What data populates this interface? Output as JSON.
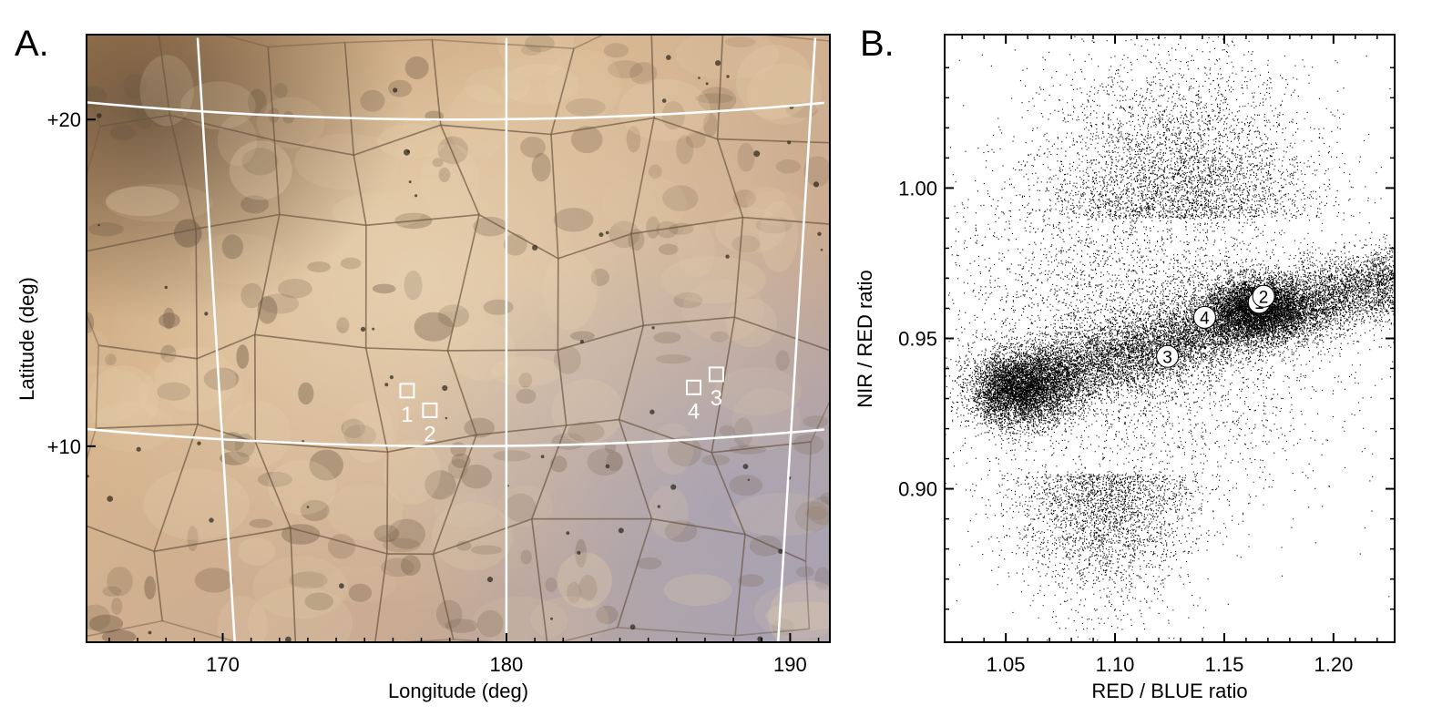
{
  "figure": {
    "panel_a_label": "A.",
    "panel_b_label": "B."
  },
  "chart_data": [
    {
      "type": "map",
      "panel": "A.",
      "xlabel": "Longitude (deg)",
      "ylabel": "Latitude (deg)",
      "xlim": [
        165.2,
        191.4
      ],
      "ylim": [
        4.0,
        22.6
      ],
      "x_ticks": [
        "170",
        "180",
        "190"
      ],
      "x_tick_values": [
        170,
        180,
        190
      ],
      "y_ticks": [
        "+20",
        "+10"
      ],
      "y_tick_values": [
        20,
        10
      ],
      "grid": true,
      "regions": [
        {
          "label": "1",
          "lon": 176.5,
          "lat": 11.7
        },
        {
          "label": "2",
          "lon": 177.3,
          "lat": 11.1
        },
        {
          "label": "3",
          "lon": 187.4,
          "lat": 12.2
        },
        {
          "label": "4",
          "lon": 186.6,
          "lat": 11.8
        }
      ],
      "colors": {
        "base": "#c8a27a",
        "bright": "#e6d0ae",
        "dark": "#6e5a44",
        "bluish": "#a8a6b4",
        "grid": "#ffffff"
      }
    },
    {
      "type": "scatter",
      "panel": "B.",
      "xlabel": "RED / BLUE ratio",
      "ylabel": "NIR / RED ratio",
      "xlim": [
        1.022,
        1.228
      ],
      "ylim": [
        0.849,
        1.051
      ],
      "x_ticks": [
        "1.05",
        "1.10",
        "1.15",
        "1.20"
      ],
      "x_tick_values": [
        1.05,
        1.1,
        1.15,
        1.2
      ],
      "y_ticks": [
        "0.90",
        "0.95",
        "1.00"
      ],
      "y_tick_values": [
        0.9,
        0.95,
        1.0
      ],
      "grid": false,
      "point_color": "#000000",
      "labeled_points": [
        {
          "label": "1",
          "x": 1.166,
          "y": 0.962
        },
        {
          "label": "2",
          "x": 1.168,
          "y": 0.964
        },
        {
          "label": "3",
          "x": 1.124,
          "y": 0.944
        },
        {
          "label": "4",
          "x": 1.141,
          "y": 0.957
        }
      ]
    }
  ]
}
